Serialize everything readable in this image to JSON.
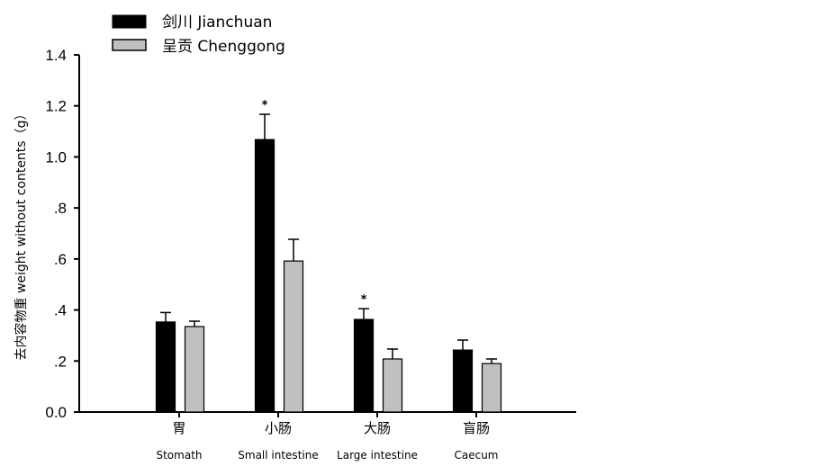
{
  "chart_data": {
    "type": "bar",
    "categories": [
      {
        "cn": "胃",
        "en": "Stomath"
      },
      {
        "cn": "小肠",
        "en": "Small intestine"
      },
      {
        "cn": "大肠",
        "en": "Large intestine"
      },
      {
        "cn": "盲肠",
        "en": "Caecum"
      }
    ],
    "series": [
      {
        "name": "剑川 Jianchuan",
        "color": "#000000",
        "values": [
          0.353,
          1.068,
          0.363,
          0.243
        ],
        "error": [
          0.037,
          0.099,
          0.042,
          0.039
        ],
        "significance": [
          "",
          "*",
          "*",
          ""
        ]
      },
      {
        "name": "呈贡 Chenggong",
        "color": "#c0c0c0",
        "values": [
          0.335,
          0.592,
          0.208,
          0.19
        ],
        "error": [
          0.021,
          0.085,
          0.039,
          0.018
        ],
        "significance": [
          "",
          "",
          "",
          ""
        ]
      }
    ],
    "ylabel": "去内容物重 weight without contents（g）",
    "xlabel": "",
    "ylim": [
      0,
      1.4
    ],
    "yticks": [
      0,
      0.2,
      0.4,
      0.6,
      0.8,
      1.0,
      1.2,
      1.4
    ],
    "ytick_labels": [
      "0.0",
      ".2",
      ".4",
      ".6",
      ".8",
      "1.0",
      "1.2",
      "1.4"
    ],
    "grid": false,
    "legend": "top-left"
  }
}
